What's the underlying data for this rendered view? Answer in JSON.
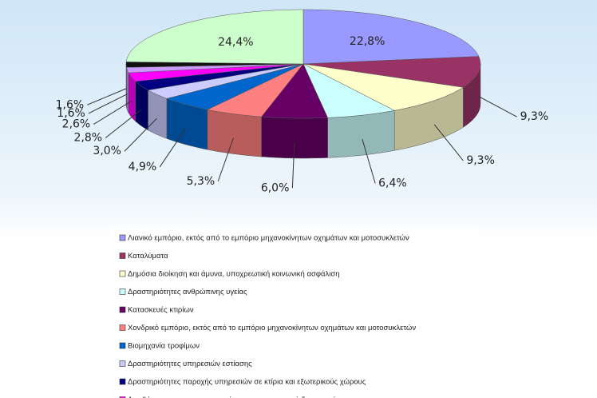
{
  "chart_data": {
    "type": "pie3d",
    "categories": [
      "Λιανικό εμπόριο, εκτός από το εμπόριο μηχανοκίνητων οχημάτων και μοτοσυκλετών",
      "Καταλύματα",
      "Δημόσια διοίκηση και άμυνα, υποχρεωτική κοινωνική ασφάλιση",
      "Δραστηριότητες ανθρώπινης υγείας",
      "Κατασκευές κτιρίων",
      "Χονδρικό εμπόριο, εκτός από το εμπόριο μηχανοκίνητων οχημάτων και μοτοσυκλετών",
      "Βιομηχανία τροφίμων",
      "Δραστηριότητες υπηρεσιών εστίασης",
      "Δραστηριότητες παροχής υπηρεσιών σε κτίρια και εξωτερικούς χώρους",
      "Αποθήκευση και υποστηρικτικές προς τη μεταφορά δραστηριότητες",
      null,
      null,
      null
    ],
    "values": [
      22.8,
      9.3,
      9.3,
      6.4,
      6.0,
      5.3,
      4.9,
      3.0,
      2.8,
      2.6,
      1.6,
      1.6,
      24.4
    ],
    "value_labels": [
      "22,8%",
      "9,3%",
      "9,3%",
      "6,4%",
      "6,0%",
      "5,3%",
      "4,9%",
      "3,0%",
      "2,8%",
      "2,6%",
      "1,6%",
      "1,6%",
      "24,4%"
    ],
    "colors": [
      "#9999ff",
      "#993366",
      "#ffffcc",
      "#ccffff",
      "#660066",
      "#ff8080",
      "#0066cc",
      "#ccccff",
      "#000080",
      "#ff00ff",
      "#cc99ff",
      "#111111",
      "#ccffcc"
    ]
  }
}
